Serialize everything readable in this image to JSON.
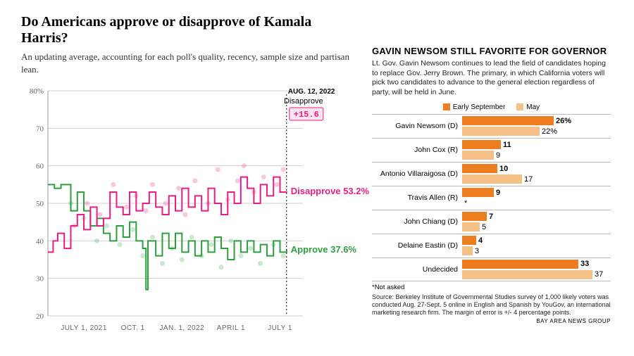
{
  "left": {
    "title": "Do Americans approve or disapprove of Kamala Harris?",
    "subtitle": "An updating average, accounting for each poll's quality, recency, sample size and partisan lean.",
    "date_label": "AUG. 12, 2022",
    "disapprove_head": "Disapprove",
    "net": "+15.6",
    "disapprove_line_label": "Disapprove 53.2%",
    "approve_line_label": "Approve 37.6%",
    "y_ticks": [
      20,
      30,
      40,
      50,
      60,
      70,
      80
    ],
    "y_top_label": "80%",
    "x_ticks": [
      "JULY 1, 2021",
      "OCT. 1",
      "JAN. 1, 2022",
      "APRIL 1",
      "JULY 1"
    ],
    "ylim": [
      20,
      80
    ],
    "colors": {
      "disapprove": "#e91e82",
      "approve": "#2e9e3e",
      "grid": "#d0d0d0",
      "bg": "#ffffff",
      "net_fill": "#fde4f0"
    },
    "disapprove_step": [
      [
        0,
        37
      ],
      [
        8,
        37
      ],
      [
        8,
        40
      ],
      [
        15,
        40
      ],
      [
        15,
        42
      ],
      [
        25,
        42
      ],
      [
        25,
        38
      ],
      [
        35,
        38
      ],
      [
        35,
        44
      ],
      [
        45,
        44
      ],
      [
        45,
        47
      ],
      [
        55,
        47
      ],
      [
        55,
        43
      ],
      [
        65,
        43
      ],
      [
        65,
        49
      ],
      [
        75,
        49
      ],
      [
        75,
        44
      ],
      [
        85,
        44
      ],
      [
        85,
        46
      ],
      [
        95,
        46
      ],
      [
        95,
        53
      ],
      [
        105,
        53
      ],
      [
        105,
        49
      ],
      [
        115,
        49
      ],
      [
        115,
        47
      ],
      [
        125,
        47
      ],
      [
        125,
        53
      ],
      [
        135,
        53
      ],
      [
        135,
        48
      ],
      [
        145,
        48
      ],
      [
        145,
        50
      ],
      [
        155,
        50
      ],
      [
        155,
        53
      ],
      [
        165,
        53
      ],
      [
        165,
        49
      ],
      [
        175,
        49
      ],
      [
        175,
        47
      ],
      [
        185,
        47
      ],
      [
        185,
        52
      ],
      [
        195,
        52
      ],
      [
        195,
        48
      ],
      [
        205,
        48
      ],
      [
        205,
        54
      ],
      [
        215,
        54
      ],
      [
        215,
        49
      ],
      [
        225,
        49
      ],
      [
        225,
        52
      ],
      [
        235,
        52
      ],
      [
        235,
        48
      ],
      [
        245,
        48
      ],
      [
        245,
        54
      ],
      [
        255,
        54
      ],
      [
        255,
        50
      ],
      [
        265,
        50
      ],
      [
        265,
        47
      ],
      [
        275,
        47
      ],
      [
        275,
        53
      ],
      [
        285,
        53
      ],
      [
        285,
        50
      ],
      [
        295,
        50
      ],
      [
        295,
        57
      ],
      [
        305,
        57
      ],
      [
        305,
        54
      ],
      [
        315,
        54
      ],
      [
        315,
        50
      ],
      [
        325,
        50
      ],
      [
        325,
        55
      ],
      [
        335,
        55
      ],
      [
        335,
        52
      ],
      [
        345,
        52
      ],
      [
        345,
        57
      ],
      [
        355,
        57
      ],
      [
        355,
        53
      ],
      [
        365,
        53
      ],
      [
        365,
        53.2
      ]
    ],
    "approve_step": [
      [
        0,
        55
      ],
      [
        10,
        55
      ],
      [
        10,
        54
      ],
      [
        20,
        54
      ],
      [
        20,
        55
      ],
      [
        35,
        55
      ],
      [
        35,
        48
      ],
      [
        45,
        48
      ],
      [
        45,
        53
      ],
      [
        55,
        53
      ],
      [
        55,
        48
      ],
      [
        65,
        48
      ],
      [
        65,
        44
      ],
      [
        75,
        44
      ],
      [
        75,
        46
      ],
      [
        85,
        46
      ],
      [
        85,
        42
      ],
      [
        95,
        42
      ],
      [
        95,
        40
      ],
      [
        105,
        40
      ],
      [
        105,
        44
      ],
      [
        115,
        44
      ],
      [
        115,
        41
      ],
      [
        125,
        41
      ],
      [
        125,
        45
      ],
      [
        135,
        45
      ],
      [
        135,
        40
      ],
      [
        145,
        40
      ],
      [
        145,
        38
      ],
      [
        150,
        38
      ],
      [
        150,
        27
      ],
      [
        153,
        27
      ],
      [
        153,
        40
      ],
      [
        165,
        40
      ],
      [
        165,
        36
      ],
      [
        175,
        36
      ],
      [
        175,
        42
      ],
      [
        185,
        42
      ],
      [
        185,
        38
      ],
      [
        195,
        38
      ],
      [
        195,
        42
      ],
      [
        205,
        42
      ],
      [
        205,
        37
      ],
      [
        215,
        37
      ],
      [
        215,
        40
      ],
      [
        225,
        40
      ],
      [
        225,
        36
      ],
      [
        235,
        36
      ],
      [
        235,
        40
      ],
      [
        245,
        40
      ],
      [
        245,
        37
      ],
      [
        255,
        37
      ],
      [
        255,
        41
      ],
      [
        265,
        41
      ],
      [
        265,
        38
      ],
      [
        275,
        38
      ],
      [
        275,
        35
      ],
      [
        285,
        35
      ],
      [
        285,
        40
      ],
      [
        295,
        40
      ],
      [
        295,
        37
      ],
      [
        305,
        37
      ],
      [
        305,
        40
      ],
      [
        315,
        40
      ],
      [
        315,
        37
      ],
      [
        325,
        37
      ],
      [
        325,
        39
      ],
      [
        335,
        39
      ],
      [
        335,
        36
      ],
      [
        345,
        36
      ],
      [
        345,
        40
      ],
      [
        355,
        40
      ],
      [
        355,
        37
      ],
      [
        365,
        37
      ],
      [
        365,
        37.6
      ]
    ],
    "scatter_pink": [
      [
        40,
        44
      ],
      [
        60,
        50
      ],
      [
        80,
        47
      ],
      [
        100,
        55
      ],
      [
        120,
        49
      ],
      [
        135,
        52
      ],
      [
        150,
        48
      ],
      [
        160,
        55
      ],
      [
        180,
        50
      ],
      [
        200,
        54
      ],
      [
        210,
        47
      ],
      [
        225,
        56
      ],
      [
        245,
        50
      ],
      [
        260,
        59
      ],
      [
        275,
        51
      ],
      [
        290,
        56
      ],
      [
        300,
        60
      ],
      [
        315,
        53
      ],
      [
        330,
        57
      ],
      [
        350,
        55
      ],
      [
        360,
        59
      ]
    ],
    "scatter_green": [
      [
        35,
        50
      ],
      [
        55,
        46
      ],
      [
        75,
        40
      ],
      [
        90,
        44
      ],
      [
        110,
        39
      ],
      [
        130,
        43
      ],
      [
        145,
        36
      ],
      [
        160,
        41
      ],
      [
        175,
        34
      ],
      [
        190,
        38
      ],
      [
        205,
        35
      ],
      [
        220,
        41
      ],
      [
        235,
        36
      ],
      [
        250,
        39
      ],
      [
        265,
        33
      ],
      [
        280,
        40
      ],
      [
        295,
        36
      ],
      [
        310,
        38
      ],
      [
        325,
        34
      ],
      [
        345,
        39
      ],
      [
        360,
        36
      ]
    ]
  },
  "right": {
    "title": "GAVIN NEWSOM STILL FAVORITE FOR GOVERNOR",
    "desc": "Lt. Gov. Gavin Newsom continues to lead the field of candidates hoping to replace Gov. Jerry Brown. The primary, in which California voters will pick two candidates to advance to the general election regardless of party, will be held in June.",
    "legend_early": "Early September",
    "legend_may": "May",
    "color_early": "#ed7d1e",
    "color_may": "#f6c186",
    "max_value": 40,
    "candidates": [
      {
        "name": "Gavin Newsom (D)",
        "early": 26,
        "may": 22,
        "early_label": "26%",
        "may_label": "22%"
      },
      {
        "name": "John Cox (R)",
        "early": 11,
        "may": 9,
        "early_label": "11",
        "may_label": "9"
      },
      {
        "name": "Antonio Villaraigosa (D)",
        "early": 10,
        "may": 17,
        "early_label": "10",
        "may_label": "17"
      },
      {
        "name": "Travis Allen (R)",
        "early": 9,
        "may": 0,
        "early_label": "9",
        "may_label": "*"
      },
      {
        "name": "John Chiang (D)",
        "early": 7,
        "may": 5,
        "early_label": "7",
        "may_label": "5"
      },
      {
        "name": "Delaine Eastin (D)",
        "early": 4,
        "may": 3,
        "early_label": "4",
        "may_label": "3"
      },
      {
        "name": "Undecided",
        "early": 33,
        "may": 37,
        "early_label": "33",
        "may_label": "37"
      }
    ],
    "footnote": "*Not asked",
    "source": "Source: Berkeley Institute of Governmental Studies survey of 1,000 likely voters was conducted Aug. 27-Sept. 5 online in English and Spanish by YouGov, an international marketing research firm. The margin of error is +/- 4 percentage points.",
    "credit": "BAY AREA NEWS GROUP"
  }
}
